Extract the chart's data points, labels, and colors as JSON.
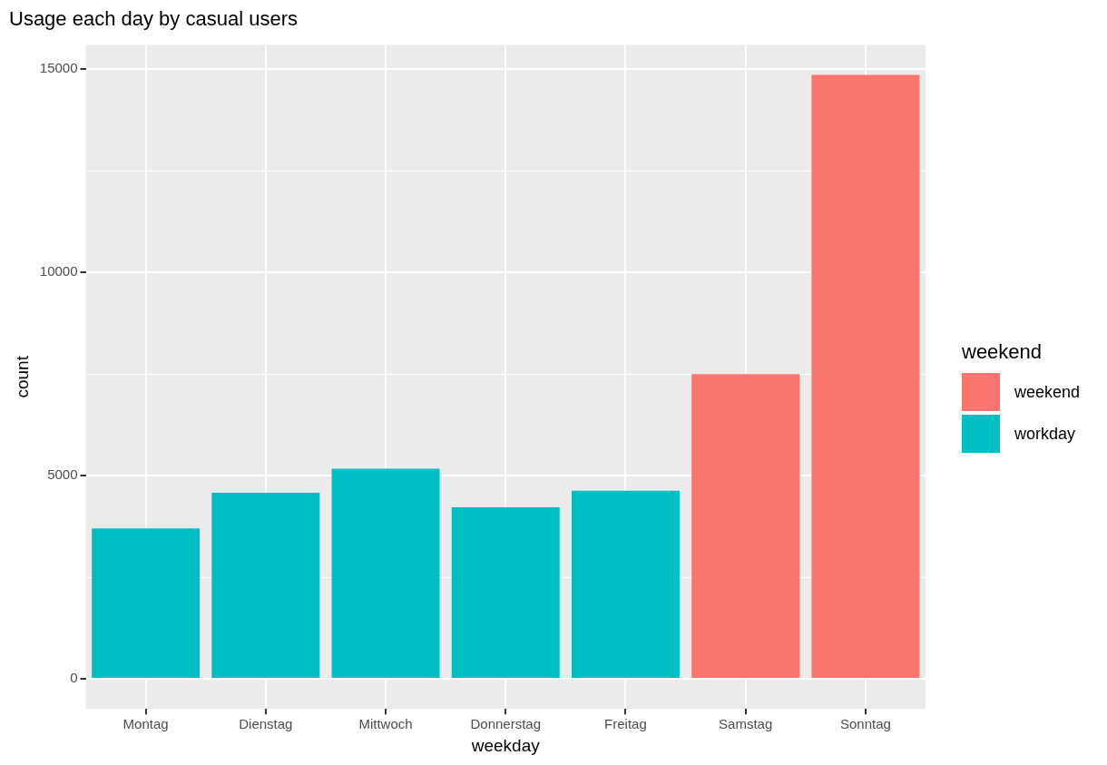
{
  "chart_data": {
    "type": "bar",
    "title": "Usage each day by casual users",
    "xlabel": "weekday",
    "ylabel": "count",
    "legend_title": "weekend",
    "categories": [
      "Montag",
      "Dienstag",
      "Mittwoch",
      "Donnerstag",
      "Freitag",
      "Samstag",
      "Sonntag"
    ],
    "series": [
      {
        "name": "weekend",
        "color": "#f8766d",
        "values": [
          null,
          null,
          null,
          null,
          null,
          7500,
          14860
        ]
      },
      {
        "name": "workday",
        "color": "#00bfc4",
        "values": [
          3700,
          4580,
          5170,
          4220,
          4630,
          null,
          null
        ]
      }
    ],
    "stacked": true,
    "ylim": [
      -740,
      15600
    ],
    "yticks": [
      0,
      {
        "value": 2500,
        "label": null
      },
      5000,
      {
        "value": 7500,
        "label": null
      },
      10000,
      {
        "value": 12500,
        "label": null
      },
      15000
    ],
    "grid": true,
    "legend": "right"
  }
}
